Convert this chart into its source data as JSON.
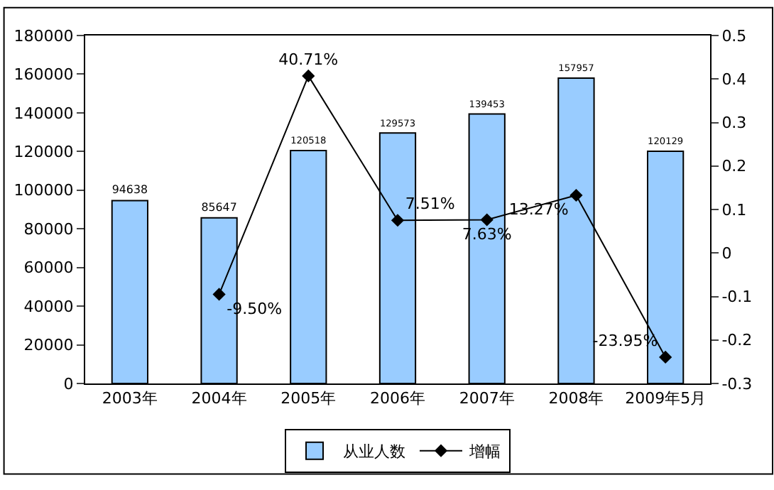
{
  "chart_data": {
    "type": "bar",
    "categories": [
      "2003年",
      "2004年",
      "2005年",
      "2006年",
      "2007年",
      "2008年",
      "2009年5月"
    ],
    "series": [
      {
        "name": "从业人数",
        "color": "#99ccff",
        "values": [
          94638,
          85647,
          120518,
          129573,
          139453,
          157957,
          120129
        ]
      },
      {
        "name": "增幅",
        "type": "line",
        "axis": "y2",
        "color": "#000000",
        "marker": "diamond",
        "values": [
          null,
          -0.095,
          0.4071,
          0.0751,
          0.0763,
          0.1327,
          -0.2395
        ],
        "value_labels": [
          null,
          "-9.50%",
          "40.71%",
          "7.51%",
          "7.63%",
          "13.27%",
          "-23.95%"
        ]
      }
    ],
    "data_labels": true,
    "ylim": [
      0,
      180000
    ],
    "yticks": [
      0,
      20000,
      40000,
      60000,
      80000,
      100000,
      120000,
      140000,
      160000,
      180000
    ],
    "y2lim": [
      -0.3,
      0.5
    ],
    "y2ticks": [
      -0.3,
      -0.2,
      -0.1,
      0,
      0.1,
      0.2,
      0.3,
      0.4,
      0.5
    ],
    "grid": false,
    "legend": "bottom"
  }
}
